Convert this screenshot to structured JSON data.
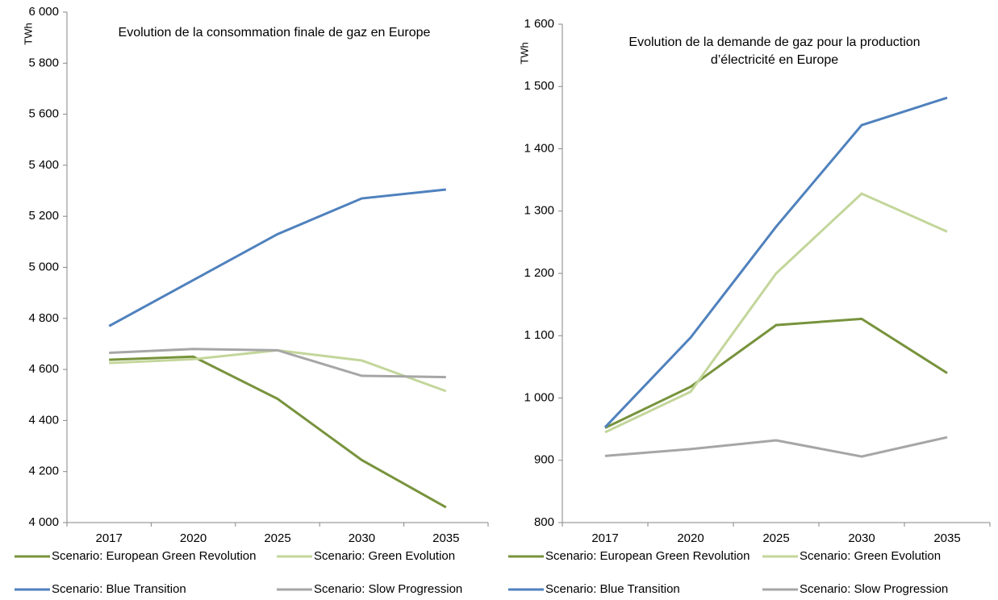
{
  "chart_data": [
    {
      "type": "line",
      "title": "Evolution de la consommation finale de gaz en Europe",
      "y_label": "TWh",
      "categories": [
        "2017",
        "2020",
        "2025",
        "2030",
        "2035"
      ],
      "ylim": [
        4000,
        6000
      ],
      "yticks": [
        {
          "value": 4000,
          "label": "4 000"
        },
        {
          "value": 4200,
          "label": "4 200"
        },
        {
          "value": 4400,
          "label": "4 400"
        },
        {
          "value": 4600,
          "label": "4 600"
        },
        {
          "value": 4800,
          "label": "4 800"
        },
        {
          "value": 5000,
          "label": "5 000"
        },
        {
          "value": 5200,
          "label": "5 200"
        },
        {
          "value": 5400,
          "label": "5 400"
        },
        {
          "value": 5600,
          "label": "5 600"
        },
        {
          "value": 5800,
          "label": "5 800"
        },
        {
          "value": 6000,
          "label": "6 000"
        }
      ],
      "grid": false,
      "series": [
        {
          "name": "Scenario: European Green Revolution",
          "color": "#77933c",
          "values": [
            4638,
            4650,
            4485,
            4245,
            4060
          ]
        },
        {
          "name": "Scenario: Green Evolution",
          "color": "#c3d69b",
          "values": [
            4625,
            4640,
            4675,
            4635,
            4515
          ]
        },
        {
          "name": "Scenario: Blue Transition",
          "color": "#4f81bd",
          "values": [
            4770,
            4950,
            5130,
            5270,
            5305
          ]
        },
        {
          "name": "Scenario: Slow Progression",
          "color": "#a6a6a6",
          "values": [
            4665,
            4680,
            4675,
            4575,
            4570
          ]
        }
      ]
    },
    {
      "type": "line",
      "title": "Evolution de la demande de gaz pour la production d’électricité en Europe",
      "y_label": "TWh",
      "categories": [
        "2017",
        "2020",
        "2025",
        "2030",
        "2035"
      ],
      "ylim": [
        800,
        1600
      ],
      "yticks": [
        800,
        900,
        {
          "value": 1000,
          "label": "1 000"
        },
        {
          "value": 1100,
          "label": "1 100"
        },
        {
          "value": 1200,
          "label": "1 200"
        },
        {
          "value": 1300,
          "label": "1 300"
        },
        {
          "value": 1400,
          "label": "1 400"
        },
        {
          "value": 1500,
          "label": "1 500"
        },
        {
          "value": 1600,
          "label": "1 600"
        }
      ],
      "grid": false,
      "series": [
        {
          "name": "Scenario: European Green Revolution",
          "color": "#77933c",
          "values": [
            952,
            1018,
            1117,
            1127,
            1040
          ]
        },
        {
          "name": "Scenario: Green Evolution",
          "color": "#c3d69b",
          "values": [
            945,
            1010,
            1200,
            1328,
            1267
          ]
        },
        {
          "name": "Scenario: Blue Transition",
          "color": "#4f81bd",
          "values": [
            953,
            1097,
            1275,
            1438,
            1482
          ]
        },
        {
          "name": "Scenario: Slow Progression",
          "color": "#a6a6a6",
          "values": [
            907,
            918,
            932,
            906,
            937
          ]
        }
      ]
    }
  ]
}
